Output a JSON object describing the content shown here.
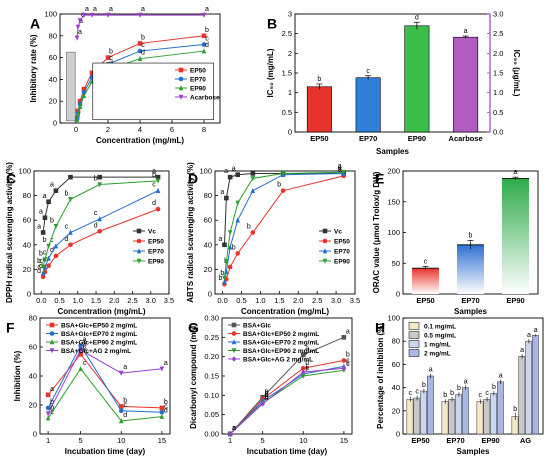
{
  "chart_data": [
    {
      "panel": "A",
      "type": "line",
      "xlabel": "Concentration (mg/mL)",
      "ylabel": "Inhibitory rate (%)",
      "xlim": [
        -1,
        9
      ],
      "ylim": [
        0,
        100
      ],
      "xticks": [
        0,
        2,
        4,
        6,
        8
      ],
      "yticks": [
        0,
        20,
        40,
        60,
        80,
        100
      ],
      "legend_position": "right-center",
      "series": [
        {
          "name": "EP50",
          "color": "#e8332b",
          "marker": "square",
          "x": [
            0.0625,
            0.125,
            0.25,
            0.5,
            1,
            2,
            4,
            8
          ],
          "y": [
            5,
            11,
            20,
            31,
            46,
            60,
            73,
            80
          ],
          "labels": [
            "",
            "",
            "",
            "",
            "",
            "b",
            "b",
            "b"
          ]
        },
        {
          "name": "EP70",
          "color": "#1f6fd1",
          "marker": "circle",
          "x": [
            0.0625,
            0.125,
            0.25,
            0.5,
            1,
            2,
            4,
            8
          ],
          "y": [
            4,
            9,
            17,
            28,
            42,
            54,
            66,
            72
          ],
          "labels": [
            "",
            "",
            "",
            "",
            "",
            "c",
            "c",
            "c"
          ]
        },
        {
          "name": "EP90",
          "color": "#2ca02c",
          "marker": "triangle",
          "x": [
            0.0625,
            0.125,
            0.25,
            0.5,
            1,
            2,
            4,
            8
          ],
          "y": [
            3,
            8,
            15,
            25,
            38,
            49,
            59,
            66
          ],
          "labels": [
            "",
            "",
            "",
            "",
            "",
            "d",
            "d",
            "d"
          ]
        },
        {
          "name": "Acarbose",
          "color": "#9b3fd0",
          "marker": "triangle-down",
          "x": [
            0.0625,
            0.125,
            0.25,
            0.5,
            1,
            2,
            4,
            8
          ],
          "y": [
            78,
            88,
            94,
            99,
            99,
            99,
            99,
            99
          ],
          "labels": [
            "a",
            "a",
            "a",
            "a",
            "a",
            "a",
            "a",
            "a"
          ]
        }
      ]
    },
    {
      "panel": "B",
      "type": "bar",
      "xlabel": "Samples",
      "ylabel": "IC₅₀ (mg/mL)",
      "ylabel_right": "IC₅₀ (μg/mL)",
      "ylim": [
        0,
        3.0
      ],
      "yticks": [
        0,
        0.5,
        1.0,
        1.5,
        2.0,
        2.5,
        3.0
      ],
      "yticks_right": [
        "0.0",
        "0.5",
        "1.0",
        "1.5",
        "2.0",
        "2.5",
        "3.0"
      ],
      "categories": [
        "EP50",
        "EP70",
        "EP90",
        "Acarbose"
      ],
      "values": [
        1.15,
        1.38,
        2.7,
        2.41
      ],
      "errors": [
        0.07,
        0.05,
        0.09,
        0.03
      ],
      "labels": [
        "b",
        "c",
        "d",
        "a"
      ],
      "colors": [
        "#e8332b",
        "#2f7fd8",
        "#3cbf4a",
        "#b05cc0"
      ]
    },
    {
      "panel": "C",
      "type": "line",
      "xlabel": "Concentration (mg/mL)",
      "ylabel": "DPPH radical scavenging activity (%)",
      "xlim": [
        -0.2,
        3.5
      ],
      "ylim": [
        0,
        100
      ],
      "xticks": [
        0.0,
        0.5,
        1.0,
        1.5,
        2.0,
        2.5,
        3.0,
        3.5
      ],
      "yticks": [
        0,
        20,
        40,
        60,
        80,
        100
      ],
      "legend_position": "right-center",
      "series": [
        {
          "name": "Vc",
          "color": "#333333",
          "marker": "square",
          "x": [
            0.05,
            0.1,
            0.2,
            0.4,
            0.8,
            1.6,
            3.2
          ],
          "y": [
            50,
            62,
            75,
            84,
            95,
            95,
            95
          ],
          "labels": [
            "a",
            "a",
            "a",
            "a",
            "",
            "",
            "a"
          ]
        },
        {
          "name": "EP50",
          "color": "#e8332b",
          "marker": "circle",
          "x": [
            0.05,
            0.1,
            0.2,
            0.4,
            0.8,
            1.6,
            3.2
          ],
          "y": [
            14,
            18,
            23,
            31,
            40,
            51,
            69
          ],
          "labels": [
            "d",
            "d",
            "d",
            "d",
            "d",
            "d",
            "d"
          ]
        },
        {
          "name": "EP70",
          "color": "#1f6fd1",
          "marker": "triangle",
          "x": [
            0.05,
            0.1,
            0.2,
            0.4,
            0.8,
            1.6,
            3.2
          ],
          "y": [
            17,
            22,
            29,
            39,
            50,
            61,
            84
          ],
          "labels": [
            "c",
            "c",
            "c",
            "c",
            "c",
            "c",
            "c"
          ]
        },
        {
          "name": "EP90",
          "color": "#2ca02c",
          "marker": "triangle-down",
          "x": [
            0.05,
            0.1,
            0.2,
            0.4,
            0.8,
            1.6,
            3.2
          ],
          "y": [
            22,
            28,
            39,
            55,
            77,
            89,
            92
          ],
          "labels": [
            "b",
            "b",
            "b",
            "b",
            "b",
            "b",
            "b"
          ]
        }
      ]
    },
    {
      "panel": "D",
      "type": "line",
      "xlabel": "Concentration (mg/mL)",
      "ylabel": "ABTS radical scavenging activity (%)",
      "xlim": [
        -0.2,
        3.5
      ],
      "ylim": [
        0,
        100
      ],
      "xticks": [
        0.0,
        0.5,
        1.0,
        1.5,
        2.0,
        2.5,
        3.0,
        3.5
      ],
      "yticks": [
        0,
        20,
        40,
        60,
        80,
        100
      ],
      "legend_position": "right-center",
      "series": [
        {
          "name": "Vc",
          "color": "#333333",
          "marker": "square",
          "x": [
            0.05,
            0.1,
            0.2,
            0.4,
            0.8,
            1.6,
            3.2
          ],
          "y": [
            40,
            78,
            95,
            97,
            98,
            98,
            98
          ],
          "labels": [
            "a",
            "a",
            "a",
            "a",
            "",
            "",
            "a"
          ]
        },
        {
          "name": "EP50",
          "color": "#e8332b",
          "marker": "circle",
          "x": [
            0.05,
            0.1,
            0.2,
            0.4,
            0.8,
            1.6,
            3.2
          ],
          "y": [
            8,
            12,
            22,
            33,
            50,
            84,
            96
          ],
          "labels": [
            "b",
            "b",
            "b",
            "b",
            "b",
            "b",
            "a"
          ]
        },
        {
          "name": "EP70",
          "color": "#1f6fd1",
          "marker": "triangle",
          "x": [
            0.05,
            0.1,
            0.2,
            0.4,
            0.8,
            1.6,
            3.2
          ],
          "y": [
            10,
            18,
            38,
            60,
            84,
            97,
            98
          ],
          "labels": [
            "",
            "",
            "",
            "",
            "",
            "",
            "a"
          ]
        },
        {
          "name": "EP90",
          "color": "#2ca02c",
          "marker": "triangle-down",
          "x": [
            0.05,
            0.1,
            0.2,
            0.4,
            0.8,
            1.6,
            3.2
          ],
          "y": [
            13,
            26,
            50,
            74,
            94,
            98,
            99
          ],
          "labels": [
            "",
            "",
            "",
            "",
            "",
            "",
            "a"
          ]
        }
      ]
    },
    {
      "panel": "E",
      "type": "bar",
      "xlabel": "Samples",
      "ylabel": "ORAC value (μmol Trolox/g DW)",
      "ylim": [
        0,
        200
      ],
      "yticks": [
        0,
        50,
        100,
        150,
        200
      ],
      "categories": [
        "EP50",
        "EP70",
        "EP90"
      ],
      "values": [
        42,
        80,
        188
      ],
      "errors": [
        3,
        7,
        2
      ],
      "labels": [
        "c",
        "b",
        "a"
      ],
      "colors": [
        "#e8332b",
        "#2f6fd1",
        "#2eaa4a"
      ]
    },
    {
      "panel": "F",
      "type": "line",
      "xlabel": "Incubation time (day)",
      "ylabel": "Inhibition (%)",
      "ylim": [
        0,
        80
      ],
      "xticks": [
        1,
        5,
        10,
        15
      ],
      "yticks": [
        0,
        20,
        40,
        60,
        80
      ],
      "legend_position": "top-left",
      "series": [
        {
          "name": "BSA+Glc+EP50 2 mg/mL",
          "color": "#e8332b",
          "marker": "square",
          "x": [
            1,
            5,
            10,
            15
          ],
          "y": [
            27,
            55,
            19,
            18
          ],
          "labels": [
            "a",
            "b",
            "b",
            "b"
          ]
        },
        {
          "name": "BSA+Glc+EP70 2 mg/mL",
          "color": "#1f6fd1",
          "marker": "circle",
          "x": [
            1,
            5,
            10,
            15
          ],
          "y": [
            18,
            61,
            16,
            15
          ],
          "labels": [
            "b",
            "a",
            "c",
            "c"
          ]
        },
        {
          "name": "BSA+Glc+EP90 2 mg/mL",
          "color": "#2ca02c",
          "marker": "triangle",
          "x": [
            1,
            5,
            10,
            15
          ],
          "y": [
            11,
            45,
            9,
            12
          ],
          "labels": [
            "c",
            "c",
            "d",
            "d"
          ]
        },
        {
          "name": "BSA+Glc+AG 2 mg/mL",
          "color": "#9b3fd0",
          "marker": "triangle-down",
          "x": [
            1,
            5,
            10,
            15
          ],
          "y": [
            14,
            58,
            42,
            45
          ],
          "labels": [
            "b",
            "a",
            "a",
            "a"
          ]
        }
      ]
    },
    {
      "panel": "G",
      "type": "line",
      "xlabel": "Incubation time (day)",
      "ylabel": "Dicarbonyl compound (mM)",
      "ylim": [
        0,
        0.3
      ],
      "xticks": [
        1,
        5,
        10,
        15
      ],
      "yticks": [
        0.0,
        0.05,
        0.1,
        0.15,
        0.2,
        0.25,
        0.3
      ],
      "legend_position": "top-left",
      "series": [
        {
          "name": "BSA+Glc",
          "color": "#555555",
          "marker": "square",
          "x": [
            1,
            5,
            10,
            15
          ],
          "y": [
            0.0,
            0.095,
            0.205,
            0.25
          ],
          "labels": [
            "a",
            "a",
            "a",
            "a"
          ]
        },
        {
          "name": "BSA+Glc+EP50 2 mg/mL",
          "color": "#e8332b",
          "marker": "circle",
          "x": [
            1,
            5,
            10,
            15
          ],
          "y": [
            0.0,
            0.09,
            0.17,
            0.19
          ],
          "labels": [
            "a",
            "b",
            "b",
            "b"
          ]
        },
        {
          "name": "BSA+Glc+EP70 2 mg/mL",
          "color": "#1f6fd1",
          "marker": "triangle",
          "x": [
            1,
            5,
            10,
            15
          ],
          "y": [
            0.0,
            0.085,
            0.155,
            0.175
          ],
          "labels": [
            "a",
            "b",
            "c",
            "c"
          ]
        },
        {
          "name": "BSA+Glc+EP90 2 mg/mL",
          "color": "#2ca02c",
          "marker": "triangle-down",
          "x": [
            1,
            5,
            10,
            15
          ],
          "y": [
            0.0,
            0.08,
            0.15,
            0.165
          ],
          "labels": [
            "a",
            "b",
            "c",
            "c"
          ]
        },
        {
          "name": "BSA+Glc+AG 2 mg/mL",
          "color": "#9b3fd0",
          "marker": "diamond",
          "x": [
            1,
            5,
            10,
            15
          ],
          "y": [
            0.0,
            0.078,
            0.16,
            0.17
          ],
          "labels": [
            "a",
            "b",
            "c",
            "c"
          ]
        }
      ]
    },
    {
      "panel": "H",
      "type": "bar",
      "xlabel": "Samples",
      "ylabel": "Percentage of inhibition (%)",
      "ylim": [
        0,
        100
      ],
      "yticks": [
        0,
        20,
        40,
        60,
        80,
        100
      ],
      "legend_position": "top-left",
      "categories": [
        "EP50",
        "EP70",
        "EP90",
        "AG"
      ],
      "series": [
        {
          "name": "0.1 mg/mL",
          "color": "#f3e9c6",
          "values": [
            30,
            28,
            28,
            15
          ],
          "errors": [
            2,
            2,
            2,
            3
          ],
          "labels": [
            "c",
            "b",
            "c",
            "b"
          ]
        },
        {
          "name": "0.5 mg/mL",
          "color": "#c8c8c8",
          "values": [
            31,
            30,
            30,
            67
          ],
          "errors": [
            2,
            2,
            2,
            2
          ],
          "labels": [
            "c",
            "b",
            "c",
            "a"
          ]
        },
        {
          "name": "1 mg/mL",
          "color": "#c9d8ef",
          "values": [
            37,
            34,
            35,
            80
          ],
          "errors": [
            2,
            2,
            2,
            2
          ],
          "labels": [
            "b",
            "b",
            "b",
            "a"
          ]
        },
        {
          "name": "2 mg/mL",
          "color": "#a9b7e6",
          "values": [
            50,
            40,
            45,
            85
          ],
          "errors": [
            2,
            2,
            2,
            1
          ],
          "labels": [
            "a",
            "a",
            "a",
            "a"
          ]
        }
      ]
    }
  ]
}
